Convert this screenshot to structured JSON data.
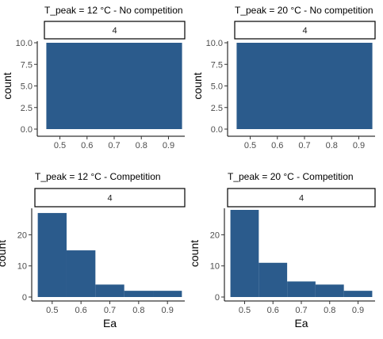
{
  "colors": {
    "bar": "#2B5B8C",
    "axis": "#000000",
    "tick_text": "#4D4D4D",
    "strip_border": "#000000"
  },
  "chart_data": [
    {
      "type": "bar",
      "title": "T_peak = 12 °C - No competition",
      "facet_label": "4",
      "xlabel": "",
      "ylabel": "count",
      "x_ticks": [
        "0.5",
        "0.6",
        "0.7",
        "0.8",
        "0.9"
      ],
      "y_ticks": [
        "0.0",
        "2.5",
        "5.0",
        "7.5",
        "10.0"
      ],
      "xlim": [
        0.44,
        0.96
      ],
      "ylim": [
        0,
        10
      ],
      "bins": [
        {
          "x_start": 0.45,
          "x_end": 0.95,
          "count": 10
        }
      ]
    },
    {
      "type": "bar",
      "title": "T_peak = 20 °C - No competition",
      "facet_label": "4",
      "xlabel": "",
      "ylabel": "count",
      "x_ticks": [
        "0.5",
        "0.6",
        "0.7",
        "0.8",
        "0.9"
      ],
      "y_ticks": [
        "0.0",
        "2.5",
        "5.0",
        "7.5",
        "10.0"
      ],
      "xlim": [
        0.44,
        0.96
      ],
      "ylim": [
        0,
        10
      ],
      "bins": [
        {
          "x_start": 0.45,
          "x_end": 0.95,
          "count": 10
        }
      ]
    },
    {
      "type": "bar",
      "title": "T_peak = 12 °C - Competition",
      "facet_label": "4",
      "xlabel": "Ea",
      "ylabel": "count",
      "x_ticks": [
        "0.5",
        "0.6",
        "0.7",
        "0.8",
        "0.9"
      ],
      "y_ticks": [
        "0",
        "10",
        "20"
      ],
      "xlim": [
        0.44,
        0.96
      ],
      "ylim": [
        0,
        28
      ],
      "bins": [
        {
          "x_start": 0.45,
          "x_end": 0.55,
          "count": 27
        },
        {
          "x_start": 0.55,
          "x_end": 0.65,
          "count": 15
        },
        {
          "x_start": 0.65,
          "x_end": 0.75,
          "count": 4
        },
        {
          "x_start": 0.75,
          "x_end": 0.85,
          "count": 2
        },
        {
          "x_start": 0.85,
          "x_end": 0.95,
          "count": 2
        }
      ]
    },
    {
      "type": "bar",
      "title": "T_peak = 20 °C - Competition",
      "facet_label": "4",
      "xlabel": "Ea",
      "ylabel": "count",
      "x_ticks": [
        "0.5",
        "0.6",
        "0.7",
        "0.8",
        "0.9"
      ],
      "y_ticks": [
        "0",
        "10",
        "20"
      ],
      "xlim": [
        0.44,
        0.96
      ],
      "ylim": [
        0,
        28
      ],
      "bins": [
        {
          "x_start": 0.45,
          "x_end": 0.55,
          "count": 28
        },
        {
          "x_start": 0.55,
          "x_end": 0.65,
          "count": 11
        },
        {
          "x_start": 0.65,
          "x_end": 0.75,
          "count": 5
        },
        {
          "x_start": 0.75,
          "x_end": 0.85,
          "count": 4
        },
        {
          "x_start": 0.85,
          "x_end": 0.95,
          "count": 2
        }
      ]
    }
  ]
}
